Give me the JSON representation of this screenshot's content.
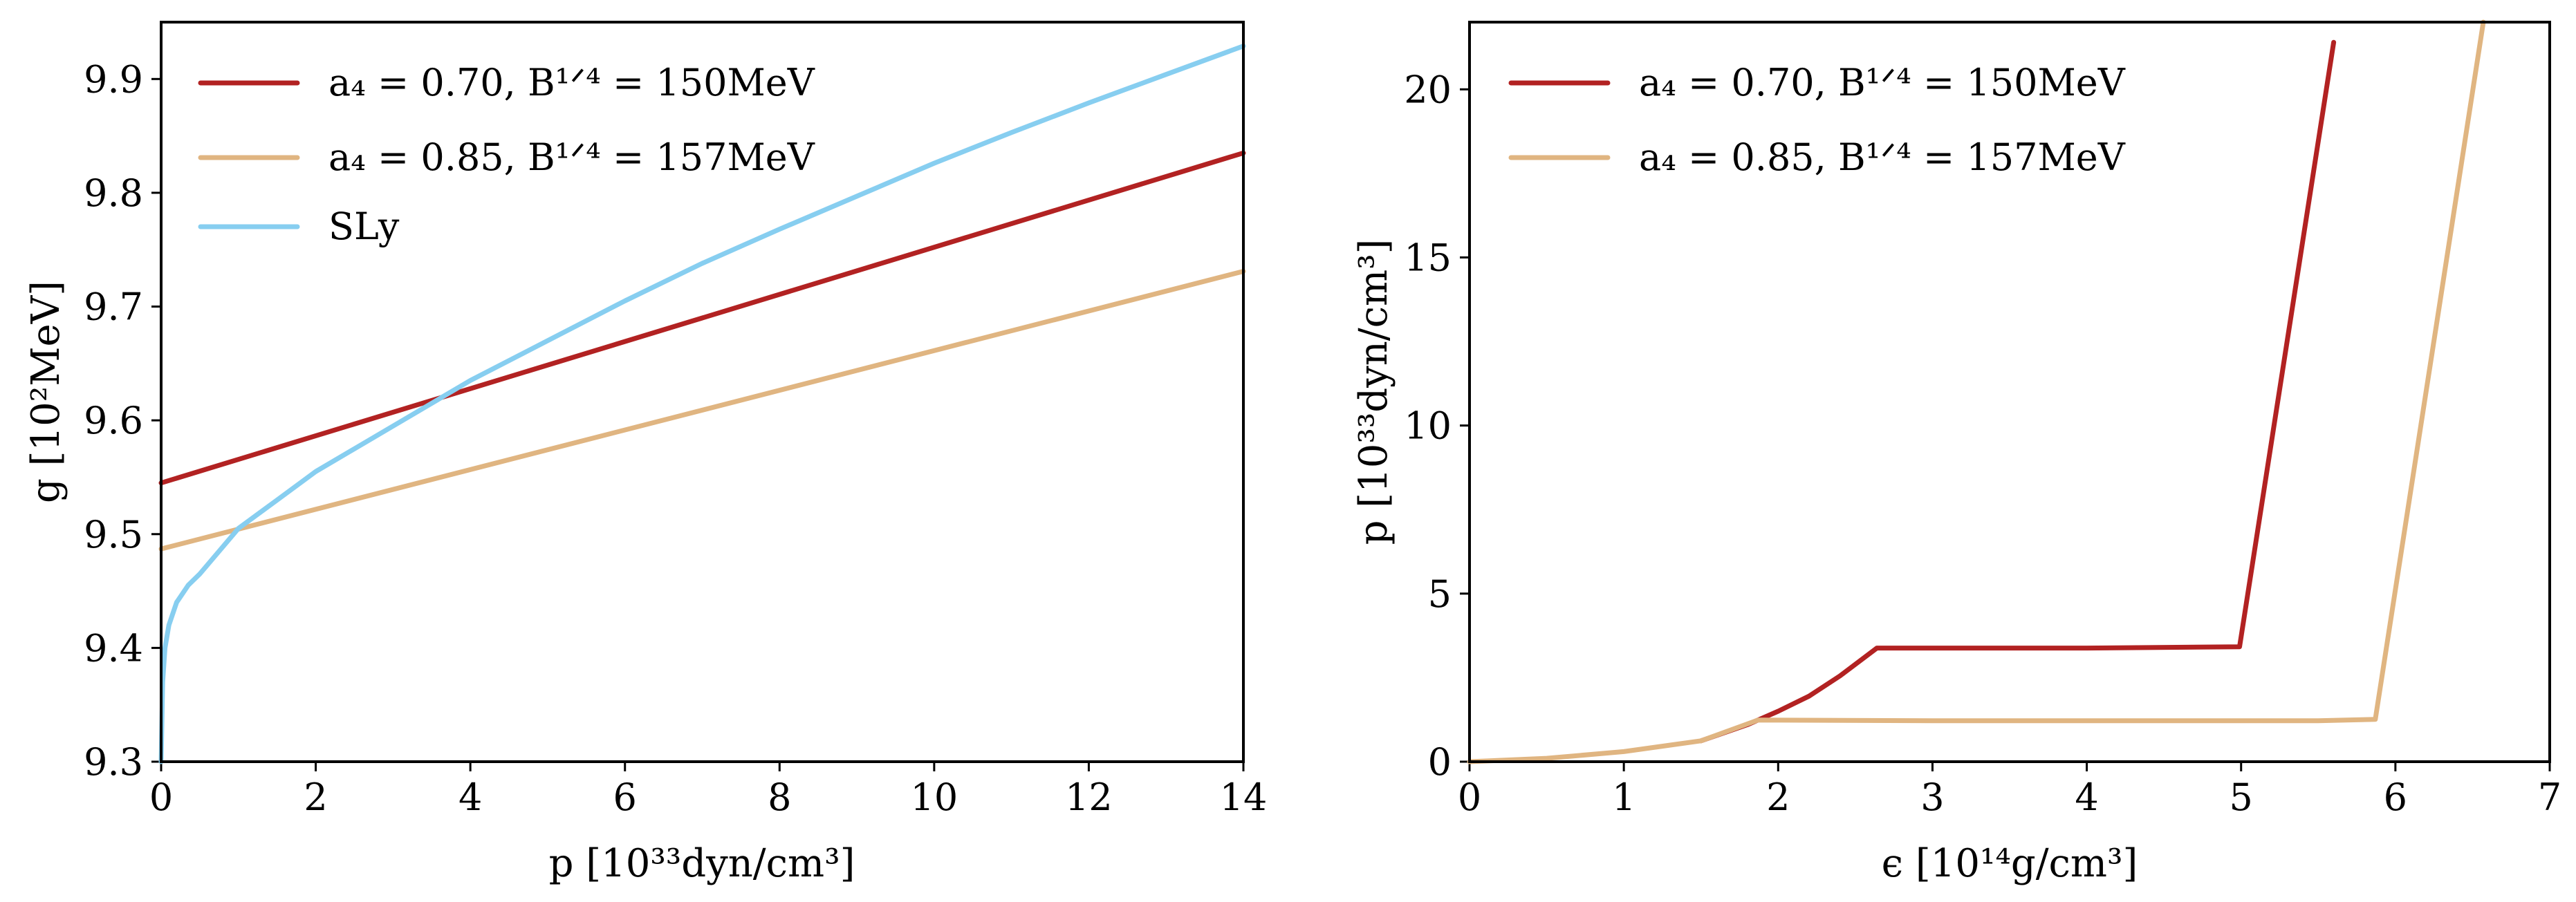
{
  "colors": {
    "dark_red": "#b22222",
    "tan": "#e0b581",
    "light_blue": "#87cef0"
  },
  "chart_data": [
    {
      "type": "line",
      "xlabel": "p [10³³dyn/cm³]",
      "ylabel": "g [10²MeV]",
      "xlim": [
        0,
        14
      ],
      "ylim": [
        9.3,
        9.95
      ],
      "xticks": [
        0,
        2,
        4,
        6,
        8,
        10,
        12,
        14
      ],
      "xtick_labels": [
        "0",
        "2",
        "4",
        "6",
        "8",
        "10",
        "12",
        "14"
      ],
      "yticks": [
        9.3,
        9.4,
        9.5,
        9.6,
        9.7,
        9.8,
        9.9
      ],
      "ytick_labels": [
        "9.3",
        "9.4",
        "9.5",
        "9.6",
        "9.7",
        "9.8",
        "9.9"
      ],
      "legend_position": "top-left",
      "series": [
        {
          "name": "a₄ = 0.70, B¹ᐟ⁴ = 150MeV",
          "color": "#b22222",
          "x": [
            0,
            14
          ],
          "y": [
            9.545,
            9.835
          ]
        },
        {
          "name": "a₄ = 0.85, B¹ᐟ⁴ = 157MeV",
          "color": "#e0b581",
          "x": [
            0,
            14
          ],
          "y": [
            9.487,
            9.731
          ]
        },
        {
          "name": "SLy",
          "color": "#87cef0",
          "x": [
            0,
            0.02,
            0.05,
            0.1,
            0.2,
            0.35,
            0.5,
            0.75,
            1,
            1.5,
            2,
            3,
            4,
            5,
            6,
            7,
            8,
            9,
            10,
            11,
            12,
            13,
            14
          ],
          "y": [
            9.3,
            9.37,
            9.4,
            9.42,
            9.44,
            9.455,
            9.465,
            9.485,
            9.505,
            9.53,
            9.555,
            9.595,
            9.635,
            9.67,
            9.705,
            9.738,
            9.768,
            9.797,
            9.826,
            9.853,
            9.879,
            9.904,
            9.929
          ]
        }
      ]
    },
    {
      "type": "line",
      "xlabel": "ϵ [10¹⁴g/cm³]",
      "ylabel": "p [10³³dyn/cm³]",
      "xlim": [
        0,
        7
      ],
      "ylim": [
        0,
        22
      ],
      "xticks": [
        0,
        1,
        2,
        3,
        4,
        5,
        6,
        7
      ],
      "xtick_labels": [
        "0",
        "1",
        "2",
        "3",
        "4",
        "5",
        "6",
        "7"
      ],
      "yticks": [
        0,
        5,
        10,
        15,
        20
      ],
      "ytick_labels": [
        "0",
        "5",
        "10",
        "15",
        "20"
      ],
      "legend_position": "top-left",
      "series": [
        {
          "name": "a₄ = 0.70, B¹ᐟ⁴ = 150MeV",
          "color": "#b22222",
          "x": [
            1.5,
            1.8,
            2.0,
            2.2,
            2.4,
            2.64,
            4.0,
            4.99,
            5.6
          ],
          "y": [
            0.62,
            1.1,
            1.5,
            1.95,
            2.55,
            3.38,
            3.38,
            3.42,
            21.4
          ]
        },
        {
          "name": "a₄ = 0.85, B¹ᐟ⁴ = 157MeV",
          "color": "#e0b581",
          "x": [
            0,
            0.5,
            1.0,
            1.5,
            1.87,
            3.0,
            4.0,
            5.5,
            5.87,
            6.57
          ],
          "y": [
            0,
            0.1,
            0.3,
            0.62,
            1.24,
            1.22,
            1.22,
            1.22,
            1.26,
            22.0
          ]
        }
      ]
    }
  ]
}
